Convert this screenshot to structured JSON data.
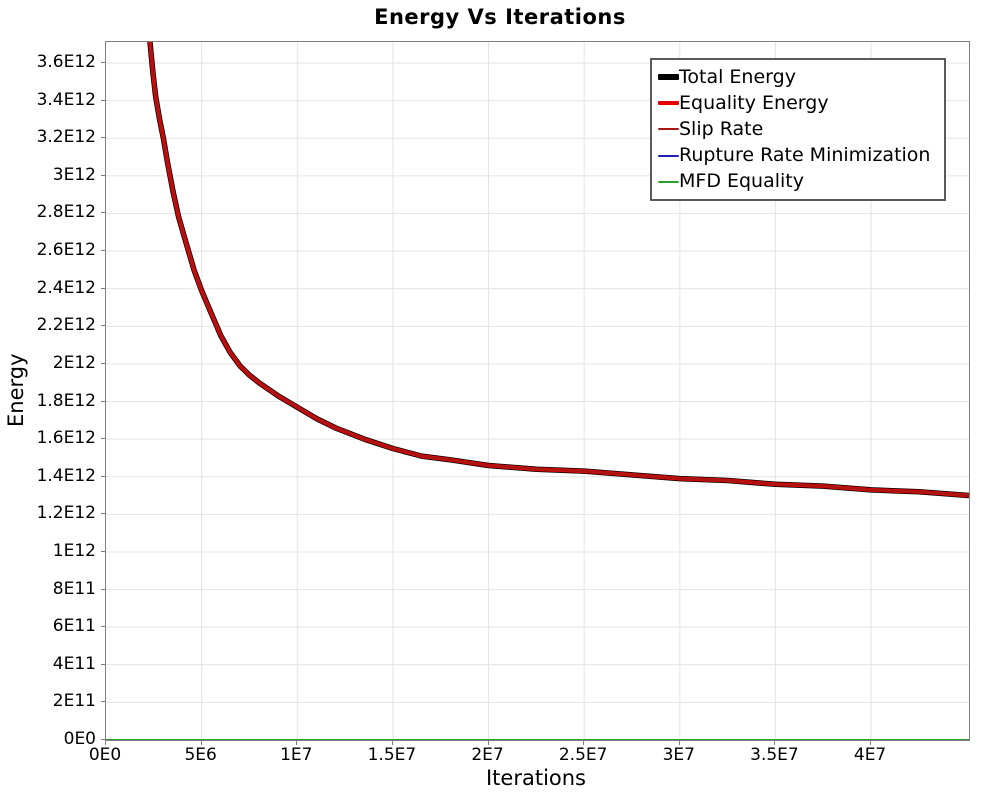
{
  "chart_data": {
    "type": "line",
    "title": "Energy Vs Iterations",
    "xlabel": "Iterations",
    "ylabel": "Energy",
    "xlim": [
      0,
      45120000
    ],
    "ylim": [
      0,
      3712000000000
    ],
    "grid": true,
    "legend_position": "top-right",
    "x_ticks": [
      {
        "value": 0,
        "label": "0E0"
      },
      {
        "value": 5000000,
        "label": "5E6"
      },
      {
        "value": 10000000,
        "label": "1E7"
      },
      {
        "value": 15000000,
        "label": "1.5E7"
      },
      {
        "value": 20000000,
        "label": "2E7"
      },
      {
        "value": 25000000,
        "label": "2.5E7"
      },
      {
        "value": 30000000,
        "label": "3E7"
      },
      {
        "value": 35000000,
        "label": "3.5E7"
      },
      {
        "value": 40000000,
        "label": "4E7"
      }
    ],
    "y_ticks": [
      {
        "value": 0,
        "label": "0E0"
      },
      {
        "value": 200000000000.0,
        "label": "2E11"
      },
      {
        "value": 400000000000.0,
        "label": "4E11"
      },
      {
        "value": 600000000000.0,
        "label": "6E11"
      },
      {
        "value": 800000000000.0,
        "label": "8E11"
      },
      {
        "value": 1000000000000.0,
        "label": "1E12"
      },
      {
        "value": 1200000000000.0,
        "label": "1.2E12"
      },
      {
        "value": 1400000000000.0,
        "label": "1.4E12"
      },
      {
        "value": 1600000000000.0,
        "label": "1.6E12"
      },
      {
        "value": 1800000000000.0,
        "label": "1.8E12"
      },
      {
        "value": 2000000000000.0,
        "label": "2E12"
      },
      {
        "value": 2200000000000.0,
        "label": "2.2E12"
      },
      {
        "value": 2400000000000.0,
        "label": "2.4E12"
      },
      {
        "value": 2600000000000.0,
        "label": "2.6E12"
      },
      {
        "value": 2800000000000.0,
        "label": "2.8E12"
      },
      {
        "value": 3000000000000.0,
        "label": "3E12"
      },
      {
        "value": 3200000000000.0,
        "label": "3.2E12"
      },
      {
        "value": 3400000000000.0,
        "label": "3.4E12"
      },
      {
        "value": 3600000000000.0,
        "label": "3.6E12"
      }
    ],
    "decay_curve_points": [
      [
        2200000,
        3850000000000.0
      ],
      [
        2300000,
        3710000000000.0
      ],
      [
        2450000,
        3550000000000.0
      ],
      [
        2600000,
        3420000000000.0
      ],
      [
        2800000,
        3300000000000.0
      ],
      [
        3000000,
        3200000000000.0
      ],
      [
        3200000,
        3080000000000.0
      ],
      [
        3500000,
        2920000000000.0
      ],
      [
        3800000,
        2780000000000.0
      ],
      [
        4200000,
        2640000000000.0
      ],
      [
        4600000,
        2500000000000.0
      ],
      [
        5000000,
        2390000000000.0
      ],
      [
        5500000,
        2270000000000.0
      ],
      [
        6000000,
        2150000000000.0
      ],
      [
        6500000,
        2060000000000.0
      ],
      [
        7000000,
        1990000000000.0
      ],
      [
        7500000,
        1940000000000.0
      ],
      [
        8000000,
        1900000000000.0
      ],
      [
        9000000,
        1830000000000.0
      ],
      [
        10000000,
        1770000000000.0
      ],
      [
        11000000,
        1710000000000.0
      ],
      [
        12000000,
        1660000000000.0
      ],
      [
        13500000,
        1600000000000.0
      ],
      [
        15000000,
        1550000000000.0
      ],
      [
        16500000,
        1510000000000.0
      ],
      [
        18000000,
        1490000000000.0
      ],
      [
        20000000,
        1460000000000.0
      ],
      [
        22500000,
        1440000000000.0
      ],
      [
        25000000,
        1430000000000.0
      ],
      [
        27500000,
        1410000000000.0
      ],
      [
        30000000,
        1390000000000.0
      ],
      [
        32500000,
        1380000000000.0
      ],
      [
        35000000,
        1360000000000.0
      ],
      [
        37500000,
        1350000000000.0
      ],
      [
        40000000,
        1330000000000.0
      ],
      [
        42500000,
        1320000000000.0
      ],
      [
        45120000,
        1300000000000.0
      ]
    ],
    "zero_line_points": [
      [
        0,
        0
      ],
      [
        45120000,
        0
      ]
    ],
    "series": [
      {
        "name": "Total Energy",
        "color": "#000000",
        "width": 5.5,
        "points_ref": "decay_curve_points"
      },
      {
        "name": "Equality Energy",
        "color": "#e60000",
        "width": 4.0,
        "points_ref": "decay_curve_points"
      },
      {
        "name": "Slip Rate",
        "color": "#a81616",
        "width": 2.4,
        "points_ref": "decay_curve_points"
      },
      {
        "name": "Rupture Rate Minimization",
        "color": "#2222b2",
        "width": 2.0,
        "points_ref": "zero_line_points"
      },
      {
        "name": "MFD Equality",
        "color": "#2ca02c",
        "width": 2.0,
        "points_ref": "zero_line_points"
      }
    ]
  },
  "style_colors": {
    "plot_border": "#7f7f7f",
    "gridline": "#e4e4e4",
    "legend_border": "#5a5a5a",
    "text": "#000000"
  }
}
